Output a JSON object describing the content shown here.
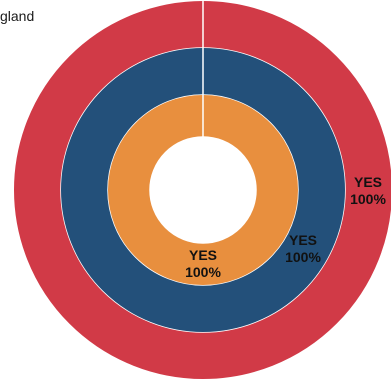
{
  "legend_partial_label": "gland",
  "chart_data": {
    "type": "pie",
    "variant": "nested-donut",
    "rings": [
      {
        "name": "",
        "categories": [
          "YES"
        ],
        "values": [
          100
        ],
        "labels": [
          "YES",
          "100%"
        ],
        "color": "#d13a47"
      },
      {
        "name": "",
        "categories": [
          "YES"
        ],
        "values": [
          100
        ],
        "labels": [
          "YES",
          "100%"
        ],
        "color": "#23507a"
      },
      {
        "name": "",
        "categories": [
          "YES"
        ],
        "values": [
          100
        ],
        "labels": [
          "YES",
          "100%"
        ],
        "color": "#e88f3e"
      }
    ],
    "legend": "top-left"
  }
}
